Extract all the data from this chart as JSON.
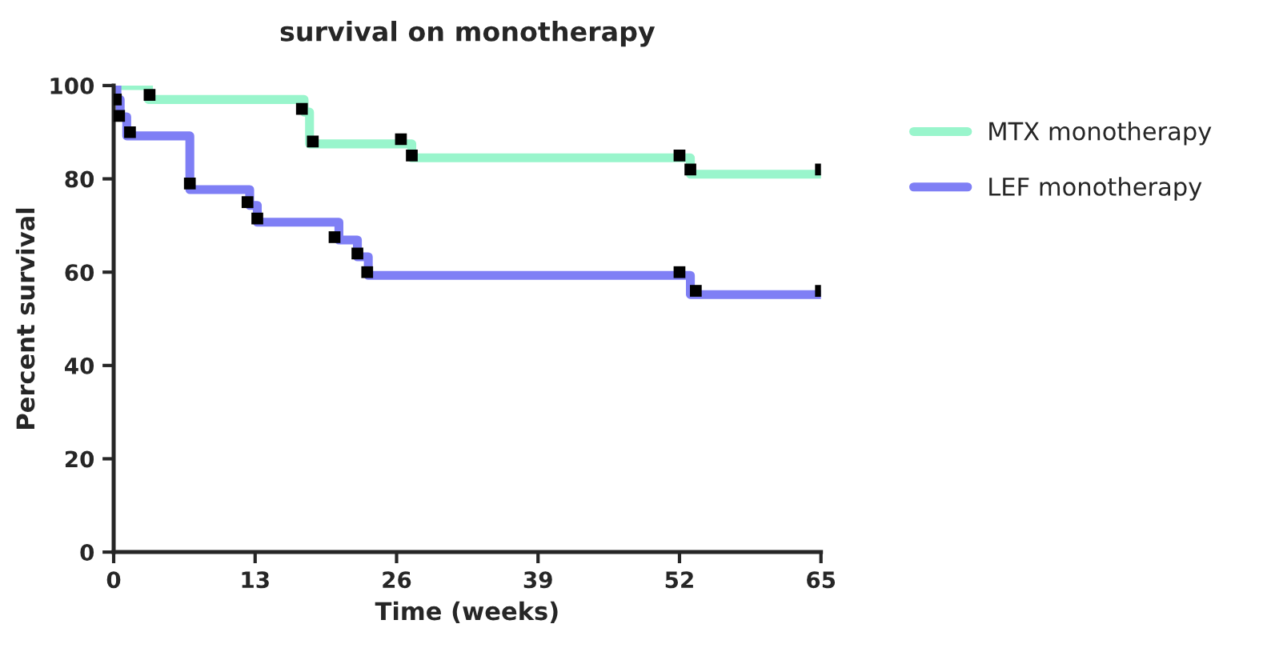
{
  "chart_data": {
    "type": "step",
    "title": "survival on monotherapy",
    "xlabel": "Time (weeks)",
    "ylabel": "Percent survival",
    "xlim": [
      0,
      65
    ],
    "xticks": [
      0,
      13,
      26,
      39,
      52,
      65
    ],
    "ylim": [
      0,
      100
    ],
    "yticks": [
      0,
      20,
      40,
      60,
      80,
      100
    ],
    "grid": false,
    "legend": "right",
    "line_style": "solid",
    "series": [
      {
        "name": "MTX monotherapy",
        "color": "#99f5cc",
        "x": [
          0,
          3.2,
          17.5,
          18,
          27.4,
          53,
          65
        ],
        "values": [
          100,
          97,
          94.3,
          87.5,
          84.5,
          81,
          81
        ]
      },
      {
        "name": "LEF monotherapy",
        "color": "#7f7ff5",
        "x": [
          0,
          0.3,
          0.6,
          1.2,
          7,
          12.5,
          13.2,
          20.7,
          22.4,
          23.4,
          53,
          65
        ],
        "values": [
          100,
          97,
          93.3,
          89.2,
          77.7,
          74.3,
          70.7,
          66.9,
          63.3,
          59.3,
          55.2,
          55.2
        ]
      },
      {
        "type": "scatter",
        "marker": "square",
        "color": "#000000",
        "x": [
          3.3,
          17.3,
          18.3,
          26.4,
          27.4,
          52,
          53,
          65
        ],
        "values": [
          98,
          95,
          88,
          88.5,
          85,
          85,
          82,
          82
        ]
      },
      {
        "type": "scatter",
        "marker": "square",
        "color": "#000000",
        "x": [
          0.2,
          0.5,
          1.5,
          7,
          12.3,
          13.2,
          20.3,
          22.4,
          23.3,
          52,
          53.5,
          65
        ],
        "values": [
          97,
          93.5,
          90,
          79,
          75,
          71.5,
          67.5,
          64,
          60,
          60,
          56,
          56
        ]
      }
    ]
  }
}
